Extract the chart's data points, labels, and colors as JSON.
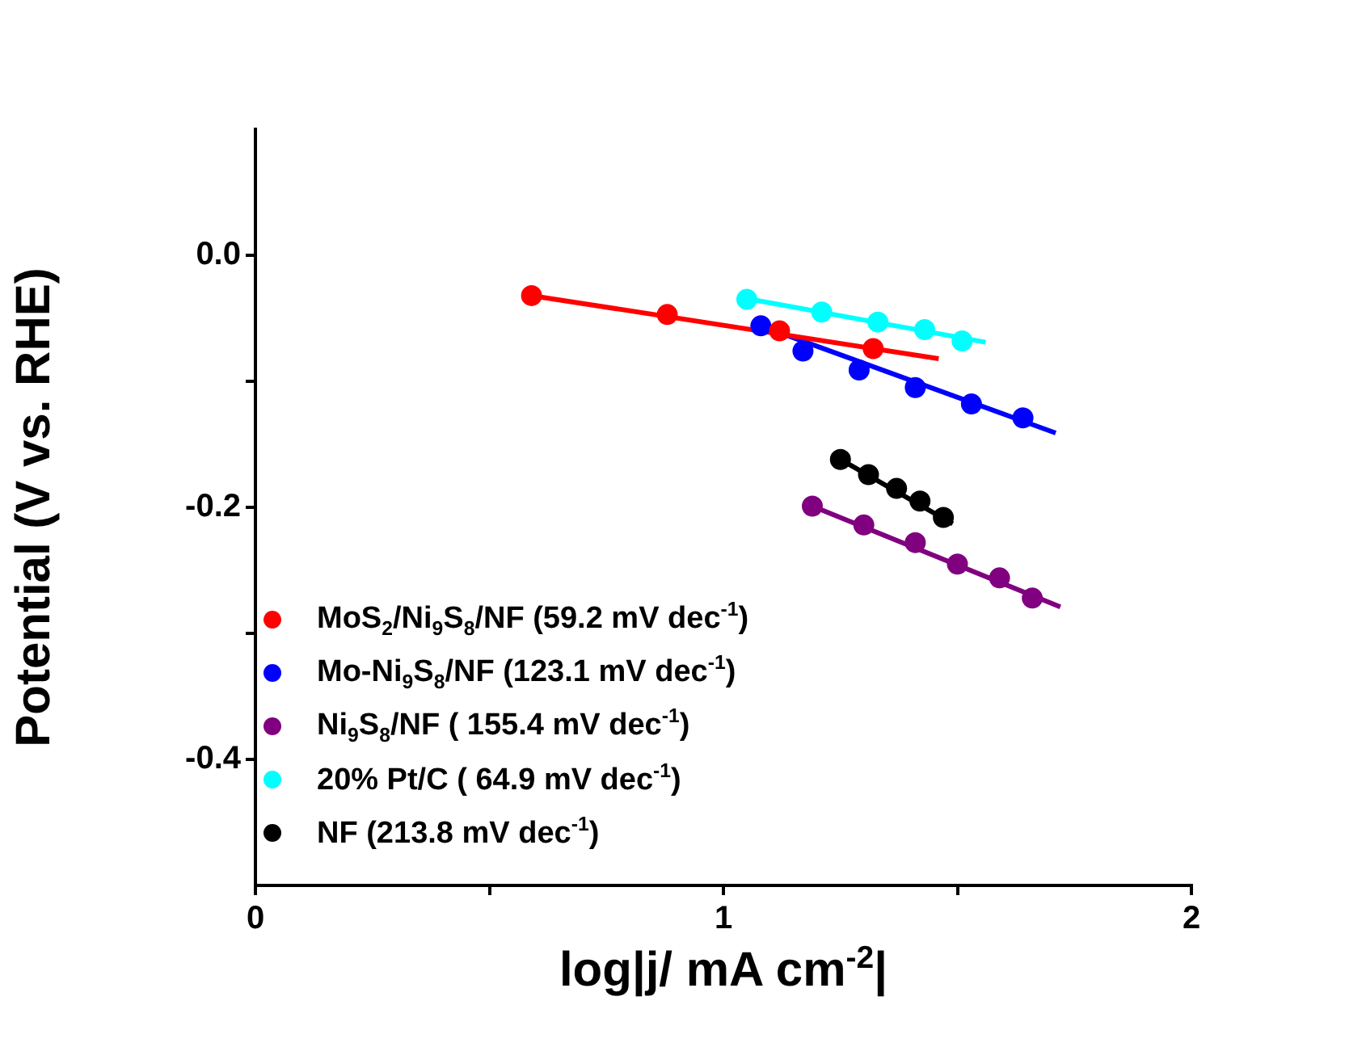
{
  "chart_data": {
    "type": "scatter",
    "xlabel": "log|j/ mA cm$^{-2}$|",
    "ylabel": "Potential (V vs. RHE)",
    "xlim": [
      0,
      2
    ],
    "ylim": [
      -0.5,
      0.1
    ],
    "xticks": [
      0,
      {
        "value": 0.5,
        "label": null
      },
      1,
      {
        "value": 1.5,
        "label": null
      },
      2
    ],
    "yticks": [
      {
        "value": -0.4,
        "label": "-0.4"
      },
      {
        "value": -0.3,
        "label": null
      },
      {
        "value": -0.2,
        "label": "-0.2"
      },
      {
        "value": -0.1,
        "label": null
      },
      {
        "value": 0,
        "label": "0.0"
      }
    ],
    "grid": false,
    "legend": "bottom left",
    "series": [
      {
        "name": "MoS$_{2}$/Ni$_{9}$S$_{8}$/NF (59.2 mV dec$^{-1}$)",
        "color": "#ff0000",
        "marker": "circle",
        "x": [
          0.59,
          0.88,
          1.12,
          1.32
        ],
        "values": [
          -0.032,
          -0.047,
          -0.06,
          -0.074
        ]
      },
      {
        "name": "Mo-Ni$_{9}$S$_{8}$/NF (123.1 mV dec$^{-1}$)",
        "color": "#0000ff",
        "marker": "circle",
        "x": [
          1.08,
          1.17,
          1.29,
          1.41,
          1.53,
          1.64
        ],
        "values": [
          -0.056,
          -0.076,
          -0.091,
          -0.105,
          -0.118,
          -0.129
        ]
      },
      {
        "name": "Ni$_{9}$S$_{8}$/NF ( 155.4 mV dec$^{-1}$)",
        "color": "#800080",
        "marker": "circle",
        "x": [
          1.19,
          1.3,
          1.41,
          1.5,
          1.59,
          1.66
        ],
        "values": [
          -0.199,
          -0.214,
          -0.228,
          -0.245,
          -0.256,
          -0.272
        ]
      },
      {
        "name": "20% Pt/C ( 64.9 mV dec$^{-1}$)",
        "color": "#00ffff",
        "marker": "circle",
        "x": [
          1.05,
          1.21,
          1.33,
          1.43,
          1.51
        ],
        "values": [
          -0.035,
          -0.045,
          -0.053,
          -0.059,
          -0.068
        ]
      },
      {
        "name": "NF (213.8 mV dec$^{-1}$)",
        "color": "#000000",
        "marker": "circle",
        "x": [
          1.25,
          1.31,
          1.37,
          1.42,
          1.47
        ],
        "values": [
          -0.162,
          -0.174,
          -0.185,
          -0.195,
          -0.208
        ]
      },
      {
        "color": "#ff0000",
        "type": "line",
        "marker": "none",
        "x": [
          0.59,
          1.46
        ],
        "values": [
          -0.032,
          -0.082
        ]
      },
      {
        "color": "#0000ff",
        "type": "line",
        "marker": "none",
        "x": [
          1.08,
          1.71
        ],
        "values": [
          -0.056,
          -0.141
        ]
      },
      {
        "color": "#800080",
        "type": "line",
        "marker": "none",
        "x": [
          1.19,
          1.72
        ],
        "values": [
          -0.199,
          -0.279
        ]
      },
      {
        "color": "#00ffff",
        "type": "line",
        "marker": "none",
        "x": [
          1.03,
          1.56
        ],
        "values": [
          -0.033,
          -0.069
        ]
      },
      {
        "color": "#000000",
        "type": "line",
        "marker": "none",
        "x": [
          1.25,
          1.49
        ],
        "values": [
          -0.162,
          -0.213
        ]
      }
    ]
  }
}
